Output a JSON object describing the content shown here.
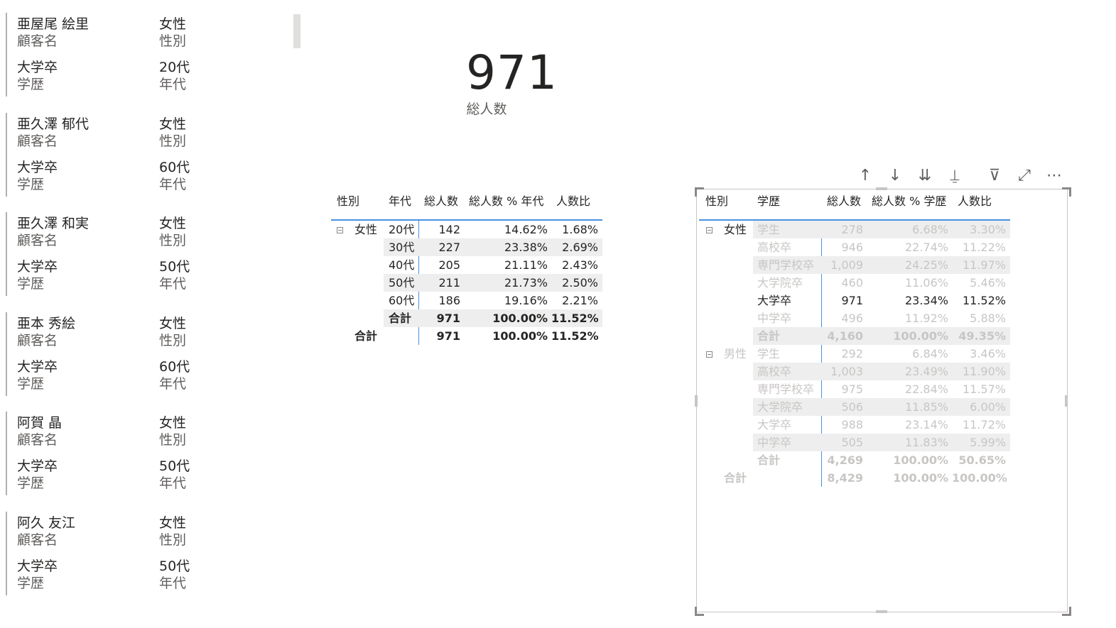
{
  "cards": [
    {
      "name": "亜屋尾 絵里",
      "name_label": "顧客名",
      "gender": "女性",
      "gender_label": "性別",
      "edu": "大学卒",
      "edu_label": "学歴",
      "age": "20代",
      "age_label": "年代"
    },
    {
      "name": "亜久澤 郁代",
      "name_label": "顧客名",
      "gender": "女性",
      "gender_label": "性別",
      "edu": "大学卒",
      "edu_label": "学歴",
      "age": "60代",
      "age_label": "年代"
    },
    {
      "name": "亜久澤 和実",
      "name_label": "顧客名",
      "gender": "女性",
      "gender_label": "性別",
      "edu": "大学卒",
      "edu_label": "学歴",
      "age": "50代",
      "age_label": "年代"
    },
    {
      "name": "亜本 秀絵",
      "name_label": "顧客名",
      "gender": "女性",
      "gender_label": "性別",
      "edu": "大学卒",
      "edu_label": "学歴",
      "age": "60代",
      "age_label": "年代"
    },
    {
      "name": "阿賀 晶",
      "name_label": "顧客名",
      "gender": "女性",
      "gender_label": "性別",
      "edu": "大学卒",
      "edu_label": "学歴",
      "age": "50代",
      "age_label": "年代"
    },
    {
      "name": "阿久 友江",
      "name_label": "顧客名",
      "gender": "女性",
      "gender_label": "性別",
      "edu": "大学卒",
      "edu_label": "学歴",
      "age": "50代",
      "age_label": "年代"
    }
  ],
  "kpi": {
    "value": "971",
    "label": "総人数"
  },
  "matrix1": {
    "headers": {
      "gender": "性別",
      "age": "年代",
      "total": "総人数",
      "pct": "総人数 % 年代",
      "ratio": "人数比"
    },
    "group": "女性",
    "rows": [
      {
        "age": "20代",
        "total": "142",
        "pct": "14.62%",
        "ratio": "1.68%"
      },
      {
        "age": "30代",
        "total": "227",
        "pct": "23.38%",
        "ratio": "2.69%"
      },
      {
        "age": "40代",
        "total": "205",
        "pct": "21.11%",
        "ratio": "2.43%"
      },
      {
        "age": "50代",
        "total": "211",
        "pct": "21.73%",
        "ratio": "2.50%"
      },
      {
        "age": "60代",
        "total": "186",
        "pct": "19.16%",
        "ratio": "2.21%"
      }
    ],
    "subtotal": {
      "label": "合計",
      "total": "971",
      "pct": "100.00%",
      "ratio": "11.52%"
    },
    "grand": {
      "label": "合計",
      "total": "971",
      "pct": "100.00%",
      "ratio": "11.52%"
    }
  },
  "matrix2": {
    "headers": {
      "gender": "性別",
      "edu": "学歴",
      "total": "総人数",
      "pct": "総人数 % 学歴",
      "ratio": "人数比"
    },
    "groups": [
      {
        "label": "女性",
        "rows": [
          {
            "edu": "学生",
            "total": "278",
            "pct": "6.68%",
            "ratio": "3.30%"
          },
          {
            "edu": "高校卒",
            "total": "946",
            "pct": "22.74%",
            "ratio": "11.22%"
          },
          {
            "edu": "専門学校卒",
            "total": "1,009",
            "pct": "24.25%",
            "ratio": "11.97%"
          },
          {
            "edu": "大学院卒",
            "total": "460",
            "pct": "11.06%",
            "ratio": "5.46%"
          },
          {
            "edu": "大学卒",
            "total": "971",
            "pct": "23.34%",
            "ratio": "11.52%"
          },
          {
            "edu": "中学卒",
            "total": "496",
            "pct": "11.92%",
            "ratio": "5.88%"
          }
        ],
        "subtotal": {
          "label": "合計",
          "total": "4,160",
          "pct": "100.00%",
          "ratio": "49.35%"
        }
      },
      {
        "label": "男性",
        "rows": [
          {
            "edu": "学生",
            "total": "292",
            "pct": "6.84%",
            "ratio": "3.46%"
          },
          {
            "edu": "高校卒",
            "total": "1,003",
            "pct": "23.49%",
            "ratio": "11.90%"
          },
          {
            "edu": "専門学校卒",
            "total": "975",
            "pct": "22.84%",
            "ratio": "11.57%"
          },
          {
            "edu": "大学院卒",
            "total": "506",
            "pct": "11.85%",
            "ratio": "6.00%"
          },
          {
            "edu": "大学卒",
            "total": "988",
            "pct": "23.14%",
            "ratio": "11.72%"
          },
          {
            "edu": "中学卒",
            "total": "505",
            "pct": "11.83%",
            "ratio": "5.99%"
          }
        ],
        "subtotal": {
          "label": "合計",
          "total": "4,269",
          "pct": "100.00%",
          "ratio": "50.65%"
        }
      }
    ],
    "grand": {
      "label": "合計",
      "total": "8,429",
      "pct": "100.00%",
      "ratio": "100.00%"
    },
    "highlight": {
      "group": 0,
      "row": 4
    }
  },
  "toolbar": {
    "icons": [
      "arrow-up-icon",
      "arrow-down-icon",
      "double-arrow-down-icon",
      "expand-hierarchy-icon",
      "filter-icon",
      "focus-mode-icon",
      "more-options-icon"
    ],
    "glyphs": [
      "↑",
      "↓",
      "⇊",
      "⍊",
      "⊽",
      "⤢",
      "⋯"
    ]
  },
  "colors": {
    "accent": "#4a90e2",
    "dim_text": "#c8c6c4",
    "text": "#252423",
    "label": "#605e5c",
    "row_shade": "#eeeeee"
  }
}
